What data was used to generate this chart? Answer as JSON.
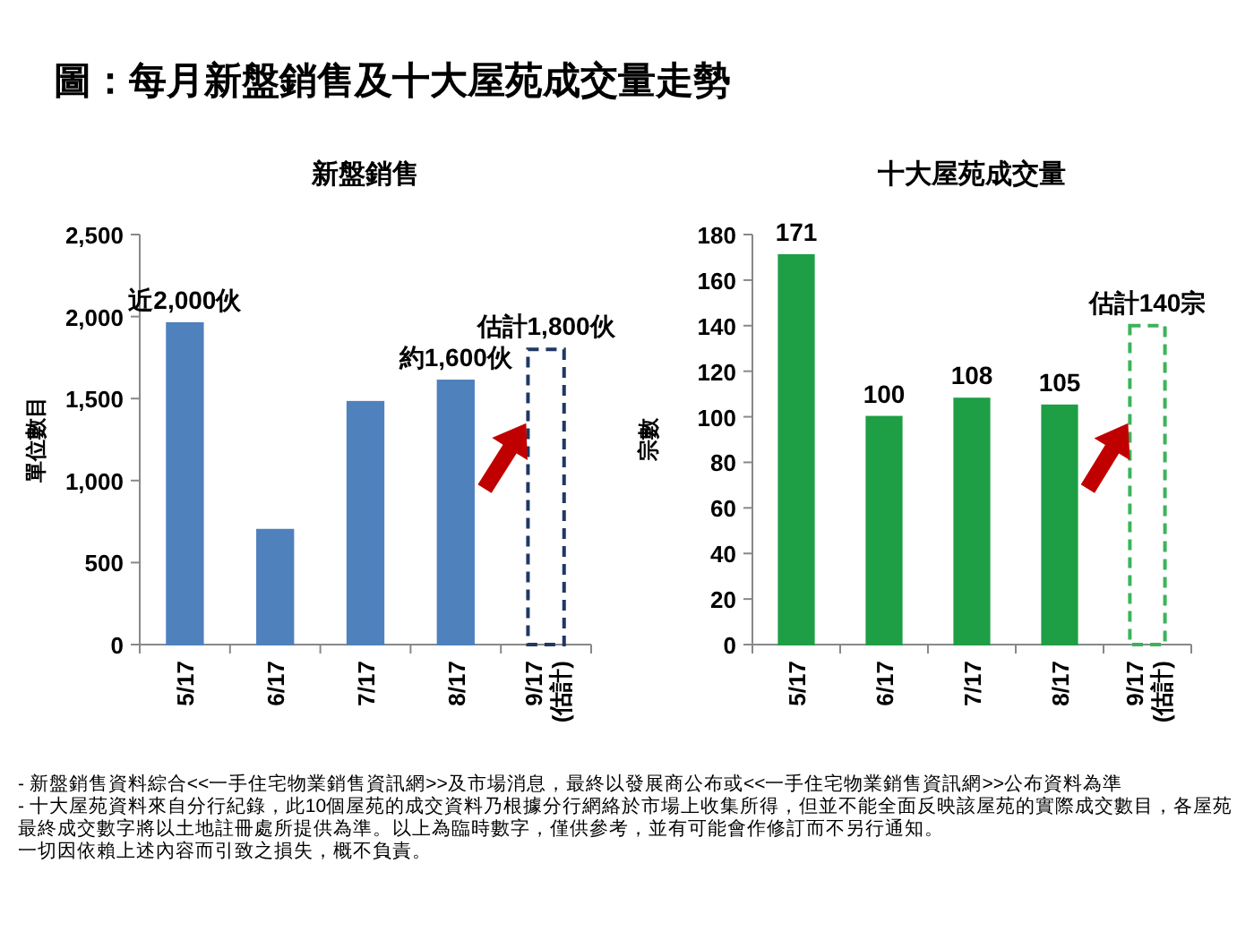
{
  "chart_data": [
    {
      "type": "other",
      "title": "圖：每月新盤銷售及十大屋苑成交量走勢",
      "annotations": [
        "- 新盤銷售資料綜合<<一手住宅物業銷售資訊網>>及市場消息，最終以發展商公布或<<一手住宅物業銷售資訊網>>公布資料為準",
        "- 十大屋苑資料來自分行紀錄，此10個屋苑的成交資料乃根據分行網絡於市場上收集所得，但並不能全面反映該屋苑的實際成交數目，各屋苑最終成交數字將以土地註冊處所提供為準。以上為臨時數字，僅供參考，並有可能會作修訂而不另行通知。",
        "一切因依賴上述內容而引致之損失，概不負責。"
      ]
    },
    {
      "type": "bar",
      "title": "新盤銷售",
      "ylabel": "單位數目",
      "categories": [
        "5/17",
        "6/17",
        "7/17",
        "8/17",
        "9/17\n(估計)"
      ],
      "ylim": [
        0,
        2500
      ],
      "yticks": [
        0,
        {
          "value": 500,
          "label": "500"
        },
        {
          "value": 1000,
          "label": "1,000"
        },
        {
          "value": 1500,
          "label": "1,500"
        },
        {
          "value": 2000,
          "label": "2,000"
        },
        {
          "value": 2500,
          "label": "2,500"
        }
      ],
      "series": [
        {
          "color": "#4f81bd",
          "values": [
            1960,
            700,
            1480,
            1610,
            null
          ],
          "value_labels": [
            "近2,000伙",
            null,
            null,
            "約1,600伙",
            null
          ]
        },
        {
          "color": "#1f3864",
          "line_style": "dashed",
          "values": [
            null,
            null,
            null,
            null,
            1800
          ],
          "value_labels": [
            null,
            null,
            null,
            null,
            "估計1,800伙"
          ]
        }
      ]
    },
    {
      "type": "bar",
      "title": "十大屋苑成交量",
      "ylabel": "宗數",
      "categories": [
        "5/17",
        "6/17",
        "7/17",
        "8/17",
        "9/17\n(估計)"
      ],
      "data_labels": true,
      "ylim": [
        0,
        180
      ],
      "yticks": [
        0,
        20,
        40,
        60,
        80,
        100,
        120,
        140,
        160,
        180
      ],
      "series": [
        {
          "color": "#1e9e45",
          "values": [
            171,
            100,
            108,
            105,
            null
          ]
        },
        {
          "color": "#3cb35a",
          "line_style": "dashed",
          "values": [
            null,
            null,
            null,
            null,
            140
          ],
          "value_labels": [
            null,
            null,
            null,
            null,
            "估計140宗"
          ]
        }
      ]
    }
  ]
}
